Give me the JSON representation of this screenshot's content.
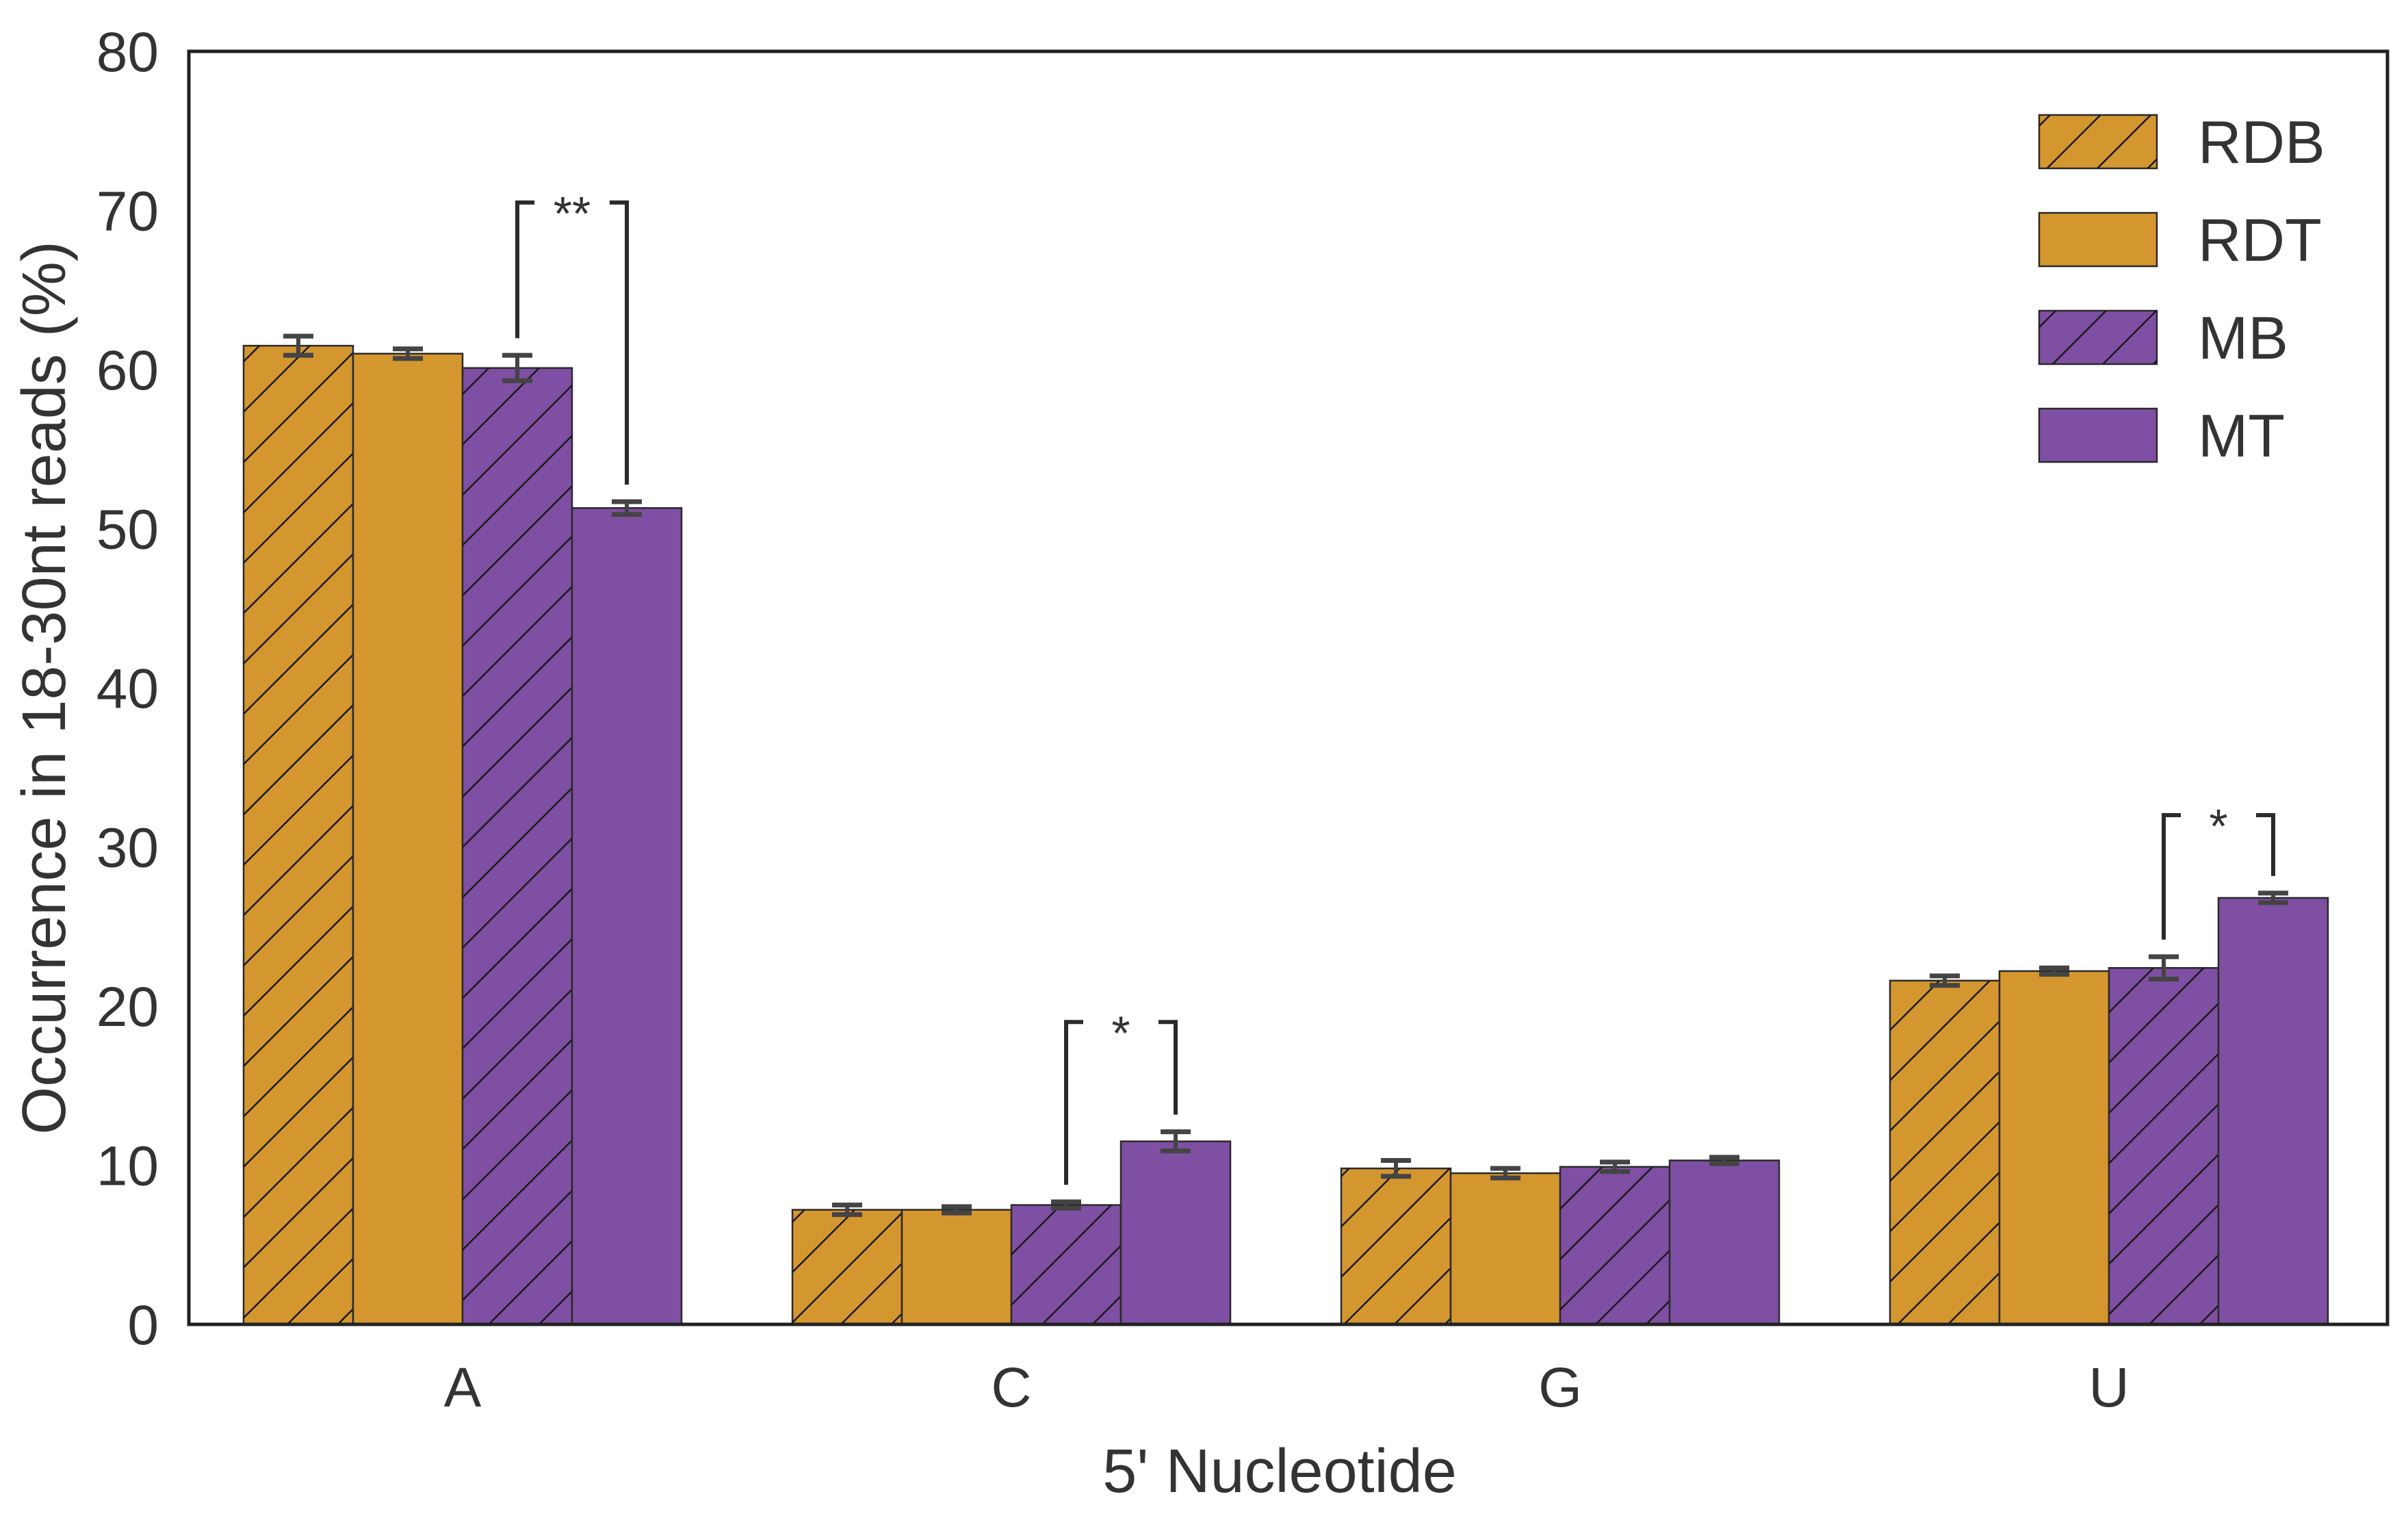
{
  "chart_data": {
    "type": "bar",
    "title": "",
    "xlabel": "5' Nucleotide",
    "ylabel": "Occurrence in 18-30nt reads (%)",
    "ylim": [
      0,
      80
    ],
    "yticks": [
      0,
      10,
      20,
      30,
      40,
      50,
      60,
      70,
      80
    ],
    "grid": false,
    "legend_position": "top-right",
    "categories": [
      "A",
      "C",
      "G",
      "U"
    ],
    "series": [
      {
        "name": "RDB",
        "color": "#D4962F",
        "hatched": true,
        "values": [
          61.5,
          7.2,
          9.8,
          21.6
        ],
        "errors": [
          0.6,
          0.3,
          0.5,
          0.3
        ]
      },
      {
        "name": "RDT",
        "color": "#D4962F",
        "hatched": false,
        "values": [
          61.0,
          7.2,
          9.5,
          22.2
        ],
        "errors": [
          0.3,
          0.2,
          0.3,
          0.2
        ]
      },
      {
        "name": "MB",
        "color": "#7F4FA3",
        "hatched": true,
        "values": [
          60.1,
          7.5,
          9.9,
          22.4
        ],
        "errors": [
          0.8,
          0.2,
          0.3,
          0.7
        ]
      },
      {
        "name": "MT",
        "color": "#7F4FA3",
        "hatched": false,
        "values": [
          51.3,
          11.5,
          10.3,
          26.8
        ],
        "errors": [
          0.4,
          0.6,
          0.2,
          0.3
        ]
      }
    ],
    "annotations": [
      {
        "category": "A",
        "from_series": "MB",
        "to_series": "MT",
        "label": "**",
        "level": 70.5
      },
      {
        "category": "C",
        "from_series": "MB",
        "to_series": "MT",
        "label": "*",
        "level": 19.0
      },
      {
        "category": "U",
        "from_series": "MB",
        "to_series": "MT",
        "label": "*",
        "level": 32.0
      }
    ]
  }
}
